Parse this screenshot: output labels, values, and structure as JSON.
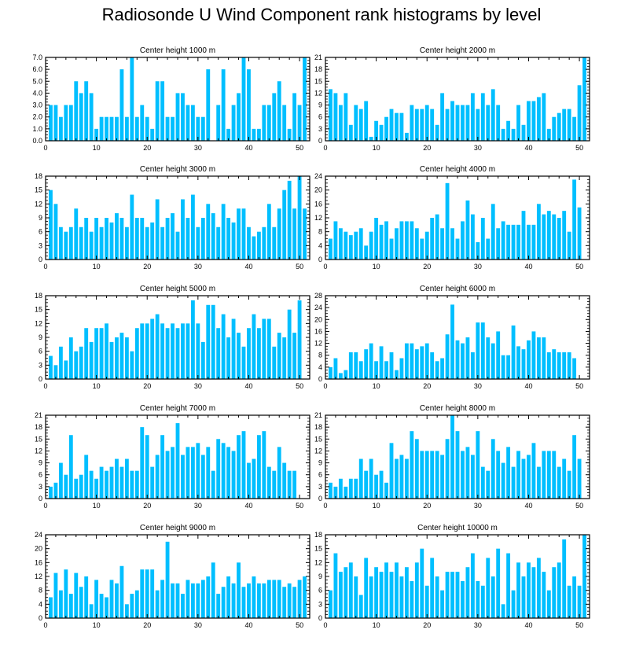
{
  "title": "Radiosonde U Wind Component rank histograms by level",
  "colors": {
    "bar": "#00bfff",
    "axis": "#000000"
  },
  "chart_data": [
    {
      "type": "bar",
      "title": "Center height 1000 m",
      "xlim": [
        0,
        52
      ],
      "xticks": [
        0,
        10,
        20,
        30,
        40,
        50
      ],
      "ylim": [
        0,
        7
      ],
      "yticks": [
        "0.0",
        "1.0",
        "2.0",
        "3.0",
        "4.0",
        "5.0",
        "6.0",
        "7.0"
      ],
      "values": [
        3,
        3,
        2,
        3,
        3,
        5,
        4,
        5,
        4,
        1,
        2,
        2,
        2,
        2,
        6,
        2,
        7,
        2,
        3,
        2,
        1,
        5,
        5,
        2,
        2,
        4,
        4,
        3,
        3,
        2,
        2,
        6,
        0,
        3,
        6,
        1,
        3,
        4,
        7,
        6,
        1,
        1,
        3,
        3,
        4,
        5,
        3,
        1,
        4,
        3,
        7
      ]
    },
    {
      "type": "bar",
      "title": "Center height 2000 m",
      "xlim": [
        0,
        52
      ],
      "xticks": [
        0,
        10,
        20,
        30,
        40,
        50
      ],
      "ylim": [
        0,
        21
      ],
      "yticks": [
        "0",
        "3",
        "6",
        "9",
        "12",
        "15",
        "18",
        "21"
      ],
      "values": [
        13,
        12,
        9,
        12,
        4,
        9,
        8,
        10,
        1,
        5,
        4,
        6,
        8,
        7,
        7,
        2,
        9,
        8,
        8,
        9,
        8,
        4,
        12,
        8,
        10,
        9,
        9,
        9,
        12,
        8,
        12,
        9,
        13,
        9,
        3,
        5,
        3,
        9,
        4,
        10,
        10,
        11,
        12,
        3,
        6,
        7,
        8,
        8,
        6,
        14,
        21
      ]
    },
    {
      "type": "bar",
      "title": "Center height 3000 m",
      "xlim": [
        0,
        52
      ],
      "xticks": [
        0,
        10,
        20,
        30,
        40,
        50
      ],
      "ylim": [
        0,
        18
      ],
      "yticks": [
        "0",
        "3",
        "6",
        "9",
        "12",
        "15",
        "18"
      ],
      "values": [
        15,
        12,
        7,
        6,
        7,
        11,
        7,
        9,
        6,
        9,
        7,
        9,
        8,
        10,
        9,
        7,
        14,
        9,
        9,
        7,
        8,
        13,
        7,
        9,
        10,
        6,
        13,
        9,
        14,
        7,
        9,
        12,
        10,
        7,
        12,
        9,
        8,
        11,
        11,
        7,
        5,
        6,
        7,
        12,
        7,
        11,
        15,
        17,
        11,
        18,
        11
      ]
    },
    {
      "type": "bar",
      "title": "Center height 4000 m",
      "xlim": [
        0,
        52
      ],
      "xticks": [
        0,
        10,
        20,
        30,
        40,
        50
      ],
      "ylim": [
        0,
        24
      ],
      "yticks": [
        "0",
        "4",
        "8",
        "12",
        "16",
        "20",
        "24"
      ],
      "values": [
        6,
        11,
        9,
        8,
        7,
        8,
        9,
        4,
        8,
        12,
        10,
        11,
        6,
        9,
        11,
        11,
        11,
        9,
        6,
        8,
        12,
        13,
        9,
        22,
        9,
        6,
        11,
        17,
        13,
        5,
        12,
        6,
        16,
        9,
        11,
        10,
        10,
        10,
        14,
        10,
        10,
        16,
        13,
        14,
        13,
        12,
        14,
        8,
        23,
        15,
        0
      ]
    },
    {
      "type": "bar",
      "title": "Center height 5000 m",
      "xlim": [
        0,
        52
      ],
      "xticks": [
        0,
        10,
        20,
        30,
        40,
        50
      ],
      "ylim": [
        0,
        18
      ],
      "yticks": [
        "0",
        "3",
        "6",
        "9",
        "12",
        "15",
        "18"
      ],
      "values": [
        5,
        3,
        7,
        4,
        9,
        6,
        7,
        11,
        8,
        11,
        11,
        12,
        8,
        9,
        10,
        9,
        6,
        11,
        12,
        12,
        13,
        14,
        12,
        11,
        12,
        11,
        12,
        12,
        17,
        12,
        8,
        16,
        16,
        11,
        14,
        9,
        13,
        10,
        7,
        11,
        14,
        11,
        13,
        13,
        7,
        10,
        9,
        15,
        10,
        17,
        0
      ]
    },
    {
      "type": "bar",
      "title": "Center height 6000 m",
      "xlim": [
        0,
        52
      ],
      "xticks": [
        0,
        10,
        20,
        30,
        40,
        50
      ],
      "ylim": [
        0,
        28
      ],
      "yticks": [
        "0",
        "4",
        "8",
        "12",
        "16",
        "20",
        "24",
        "28"
      ],
      "values": [
        4,
        7,
        2,
        3,
        9,
        9,
        6,
        10,
        12,
        6,
        11,
        6,
        9,
        3,
        7,
        12,
        12,
        10,
        11,
        12,
        9,
        6,
        7,
        15,
        25,
        13,
        12,
        14,
        9,
        19,
        19,
        14,
        12,
        16,
        8,
        8,
        18,
        11,
        10,
        13,
        16,
        14,
        14,
        9,
        10,
        9,
        9,
        9,
        7,
        0,
        0
      ]
    },
    {
      "type": "bar",
      "title": "Center height 7000 m",
      "xlim": [
        0,
        52
      ],
      "xticks": [
        0,
        10,
        20,
        30,
        40,
        50
      ],
      "ylim": [
        0,
        21
      ],
      "yticks": [
        "0",
        "3",
        "6",
        "9",
        "12",
        "15",
        "18",
        "21"
      ],
      "values": [
        3,
        4,
        9,
        6,
        16,
        5,
        6,
        11,
        7,
        5,
        8,
        7,
        8,
        10,
        8,
        10,
        7,
        7,
        18,
        16,
        8,
        11,
        16,
        12,
        13,
        19,
        11,
        13,
        13,
        14,
        11,
        13,
        7,
        15,
        14,
        13,
        12,
        16,
        17,
        9,
        10,
        16,
        17,
        8,
        7,
        13,
        9,
        7,
        7,
        0,
        0
      ]
    },
    {
      "type": "bar",
      "title": "Center height 8000 m",
      "xlim": [
        0,
        52
      ],
      "xticks": [
        0,
        10,
        20,
        30,
        40,
        50
      ],
      "ylim": [
        0,
        21
      ],
      "yticks": [
        "0",
        "3",
        "6",
        "9",
        "12",
        "15",
        "18",
        "21"
      ],
      "values": [
        4,
        3,
        5,
        3,
        5,
        5,
        10,
        7,
        10,
        6,
        7,
        4,
        14,
        10,
        11,
        10,
        17,
        15,
        12,
        12,
        12,
        12,
        11,
        15,
        21,
        17,
        12,
        13,
        11,
        17,
        8,
        7,
        15,
        12,
        9,
        13,
        8,
        12,
        10,
        11,
        14,
        8,
        12,
        12,
        12,
        8,
        10,
        7,
        16,
        10,
        0
      ]
    },
    {
      "type": "bar",
      "title": "Center height 9000 m",
      "xlim": [
        0,
        52
      ],
      "xticks": [
        0,
        10,
        20,
        30,
        40,
        50
      ],
      "ylim": [
        0,
        24
      ],
      "yticks": [
        "0",
        "4",
        "8",
        "12",
        "16",
        "20",
        "24"
      ],
      "values": [
        6,
        13,
        8,
        14,
        7,
        13,
        9,
        12,
        4,
        11,
        7,
        6,
        11,
        10,
        15,
        4,
        7,
        8,
        14,
        14,
        14,
        8,
        11,
        22,
        10,
        10,
        7,
        11,
        10,
        10,
        11,
        12,
        16,
        7,
        9,
        12,
        10,
        16,
        9,
        10,
        12,
        10,
        10,
        11,
        11,
        11,
        9,
        10,
        9,
        11,
        12
      ]
    },
    {
      "type": "bar",
      "title": "Center height 10000 m",
      "xlim": [
        0,
        52
      ],
      "xticks": [
        0,
        10,
        20,
        30,
        40,
        50
      ],
      "ylim": [
        0,
        18
      ],
      "yticks": [
        "0",
        "3",
        "6",
        "9",
        "12",
        "15",
        "18"
      ],
      "values": [
        6,
        14,
        10,
        11,
        12,
        9,
        5,
        13,
        9,
        11,
        10,
        12,
        10,
        12,
        9,
        11,
        8,
        12,
        15,
        7,
        13,
        9,
        6,
        10,
        10,
        10,
        8,
        11,
        14,
        8,
        7,
        13,
        9,
        15,
        3,
        14,
        6,
        12,
        9,
        12,
        11,
        13,
        10,
        6,
        11,
        12,
        17,
        7,
        9,
        7,
        18
      ]
    }
  ]
}
